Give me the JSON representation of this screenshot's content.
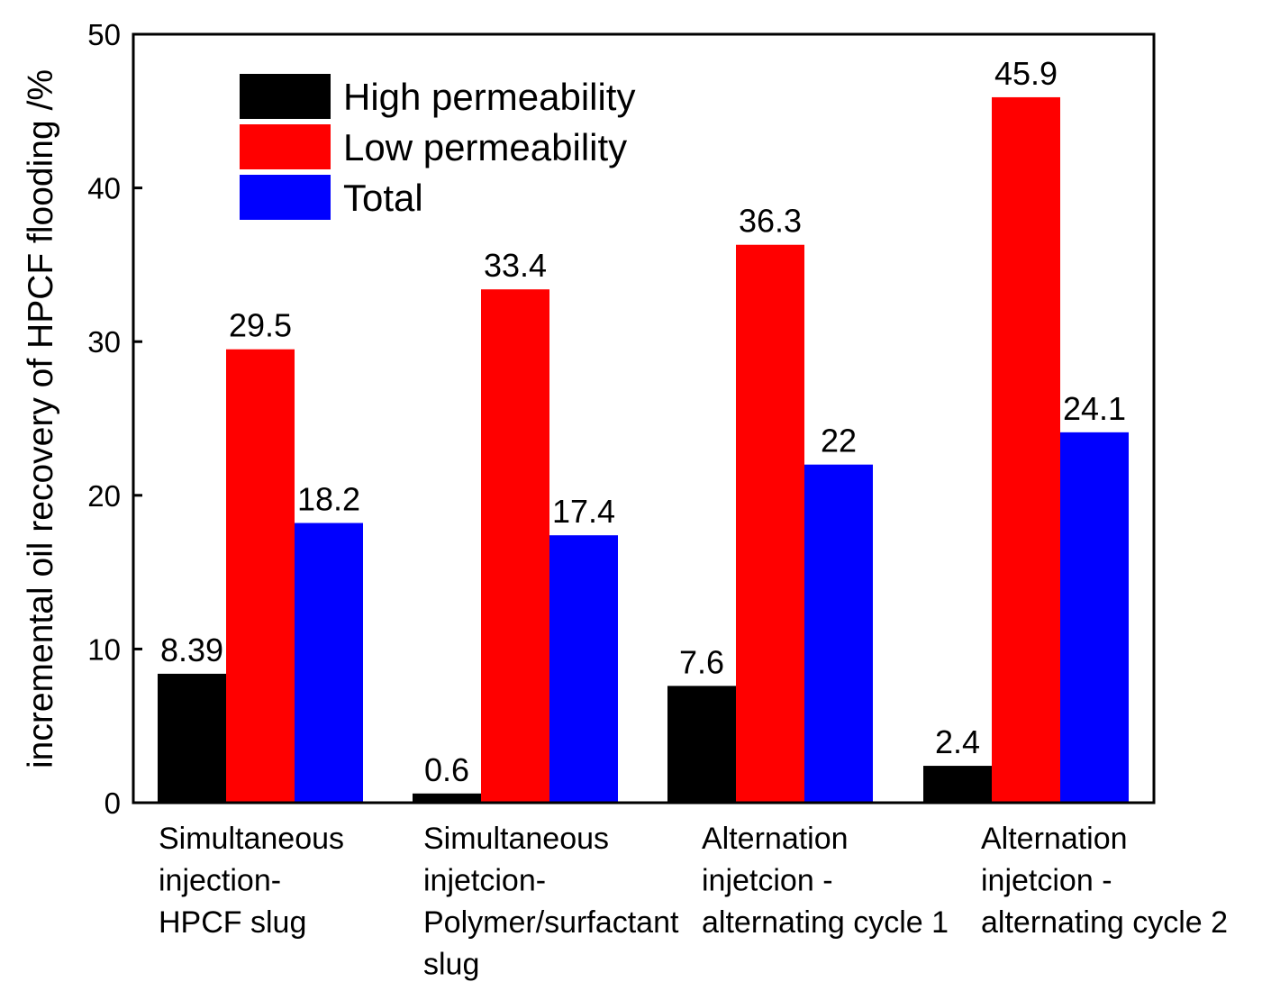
{
  "chart_data": {
    "type": "bar",
    "title": "",
    "xlabel": "",
    "ylabel": "incremental oil recovery of HPCF flooding /%",
    "ylim": [
      0,
      50
    ],
    "yticks": [
      0,
      10,
      20,
      30,
      40,
      50
    ],
    "grid": false,
    "legend_position": "top-left",
    "categories": [
      [
        "Simultaneous",
        "injection-",
        "HPCF slug"
      ],
      [
        "Simultaneous",
        "injetcion-",
        "Polymer/surfactant",
        "slug"
      ],
      [
        "Alternation",
        "injetcion -",
        "alternating cycle 1"
      ],
      [
        "Alternation",
        "injetcion -",
        "alternating cycle 2"
      ]
    ],
    "series": [
      {
        "name": "High permeability",
        "color": "#000000",
        "values": [
          8.39,
          0.6,
          7.6,
          2.4
        ],
        "labels": [
          "8.39",
          "0.6",
          "7.6",
          "2.4"
        ]
      },
      {
        "name": "Low permeability",
        "color": "#ff0000",
        "values": [
          29.5,
          33.4,
          36.3,
          45.9
        ],
        "labels": [
          "29.5",
          "33.4",
          "36.3",
          "45.9"
        ]
      },
      {
        "name": "Total",
        "color": "#0000ff",
        "values": [
          18.2,
          17.4,
          22,
          24.1
        ],
        "labels": [
          "18.2",
          "17.4",
          "22",
          "24.1"
        ]
      }
    ]
  }
}
